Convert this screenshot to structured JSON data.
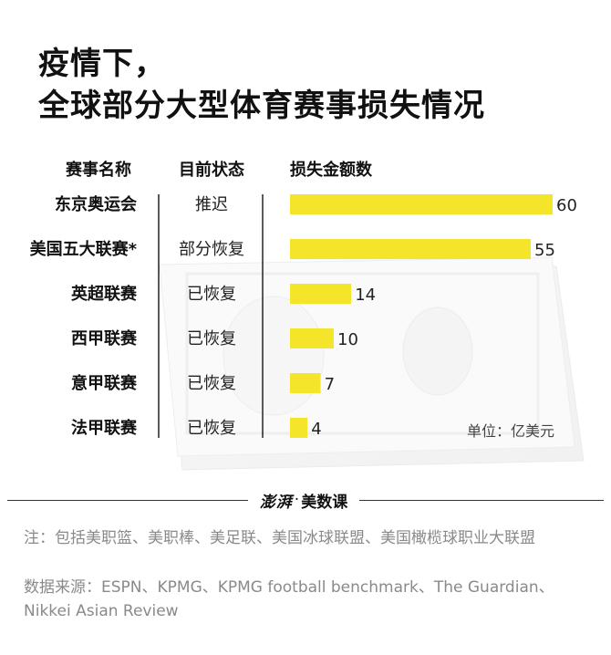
{
  "title_line1": "疫情下，",
  "title_line2": "全球部分大型体育赛事损失情况",
  "headers": {
    "event": "赛事名称",
    "status": "目前状态",
    "loss": "损失金额数"
  },
  "unit": "单位：亿美元",
  "logo": {
    "mark": "澎湃",
    "dot": "·",
    "text": "美数课"
  },
  "note": "注：包括美职篮、美职棒、美足联、美国冰球联盟、美国橄榄球职业大联盟",
  "source": "数据来源：ESPN、KPMG、KPMG football benchmark、The Guardian、Nikkei Asian Review",
  "colors": {
    "bar": "#f5e52a",
    "text": "#1a1a1a",
    "note": "#8a8a8a"
  },
  "chart_data": {
    "type": "bar",
    "orientation": "horizontal",
    "categories": [
      "东京奥运会",
      "美国五大联赛*",
      "英超联赛",
      "西甲联赛",
      "意甲联赛",
      "法甲联赛"
    ],
    "status": [
      "推迟",
      "部分恢复",
      "已恢复",
      "已恢复",
      "已恢复",
      "已恢复"
    ],
    "values": [
      60,
      55,
      14,
      10,
      7,
      4
    ],
    "value_labels": [
      "60",
      "55",
      "14",
      "10",
      "7",
      "4"
    ],
    "unit": "亿美元",
    "xlim": [
      0,
      60
    ]
  }
}
